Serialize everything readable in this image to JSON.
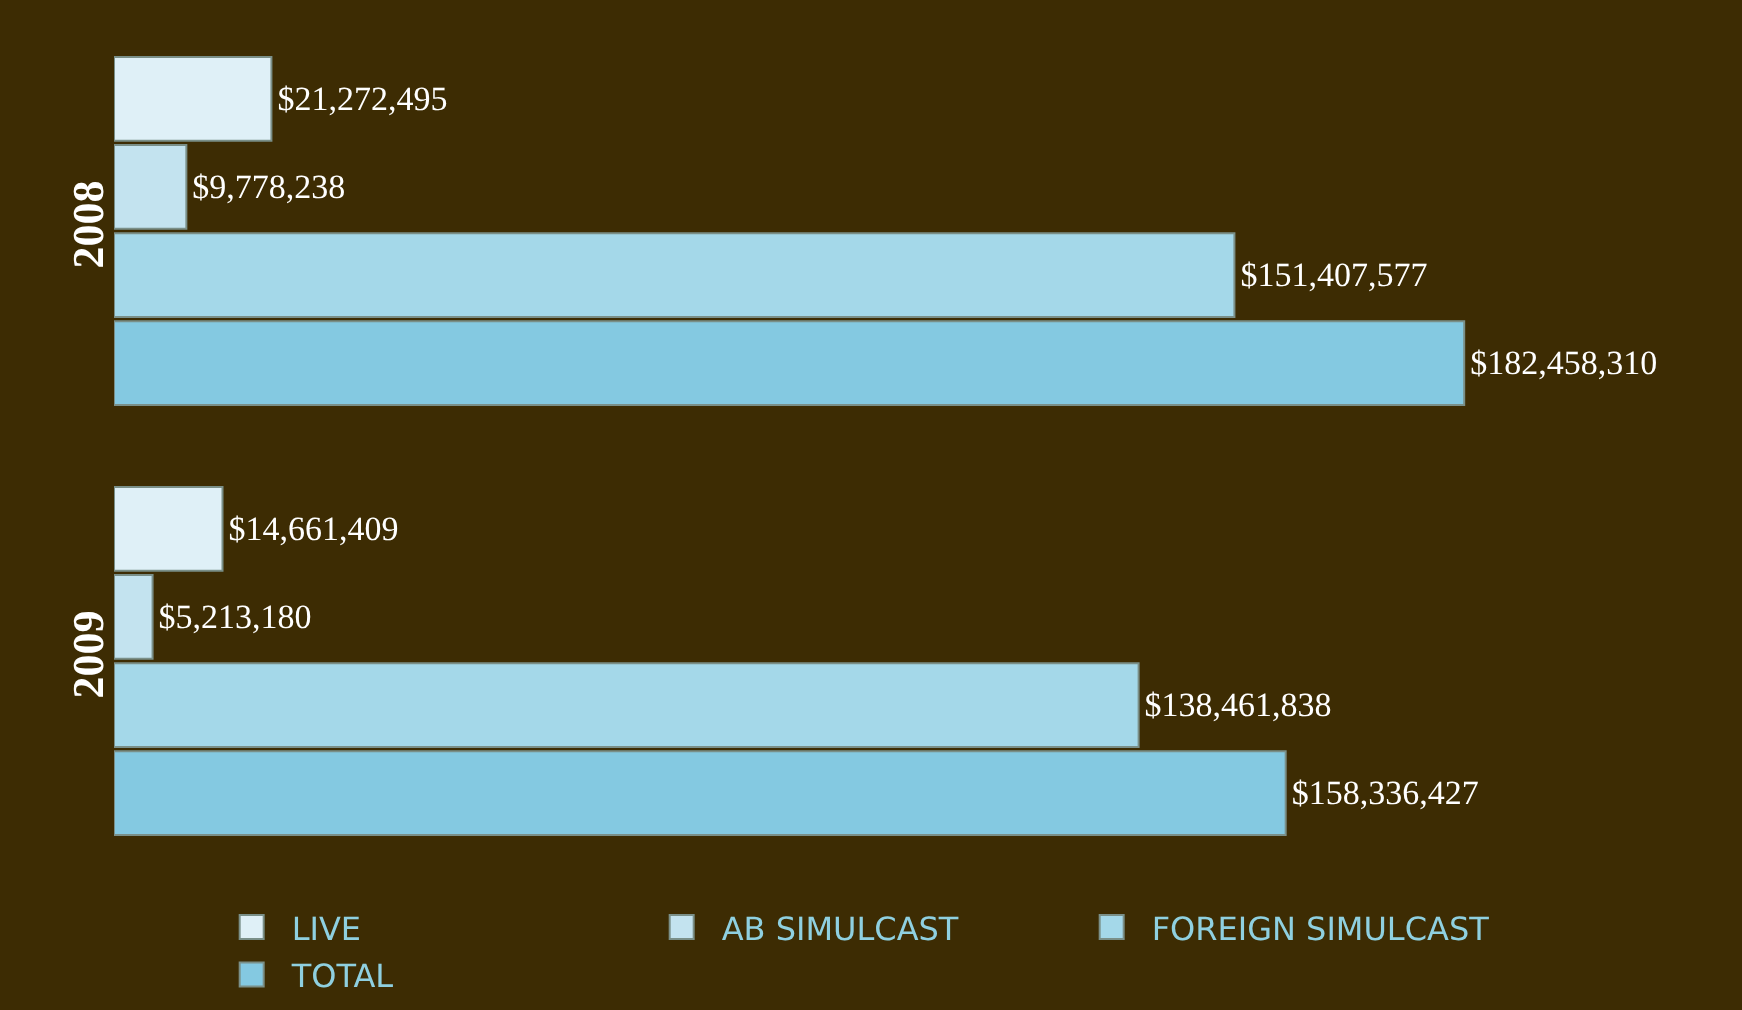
{
  "chart_data": {
    "type": "bar",
    "orientation": "horizontal",
    "categories": [
      "2008",
      "2009"
    ],
    "xlim": [
      0,
      220000000
    ],
    "legend": "bottom",
    "grid": false,
    "tick_labels": "y",
    "series": [
      {
        "name": "LIVE",
        "color": "#dff0f7",
        "values": [
          21272495,
          14661409
        ],
        "value_labels": [
          "$21,272,495",
          "$14,661,409"
        ]
      },
      {
        "name": "AB SIMULCAST",
        "color": "#c3e3ef",
        "values": [
          9778238,
          5213180
        ],
        "value_labels": [
          "$9,778,238",
          "$5,213,180"
        ]
      },
      {
        "name": "FOREIGN SIMULCAST",
        "color": "#a4d8e9",
        "values": [
          151407577,
          138461838
        ],
        "value_labels": [
          "$151,407,577",
          "$138,461,838"
        ]
      },
      {
        "name": "TOTAL",
        "color": "#84c9e1",
        "values": [
          182458310,
          158336427
        ],
        "value_labels": [
          "$182,458,310",
          "$158,336,427"
        ]
      }
    ]
  }
}
